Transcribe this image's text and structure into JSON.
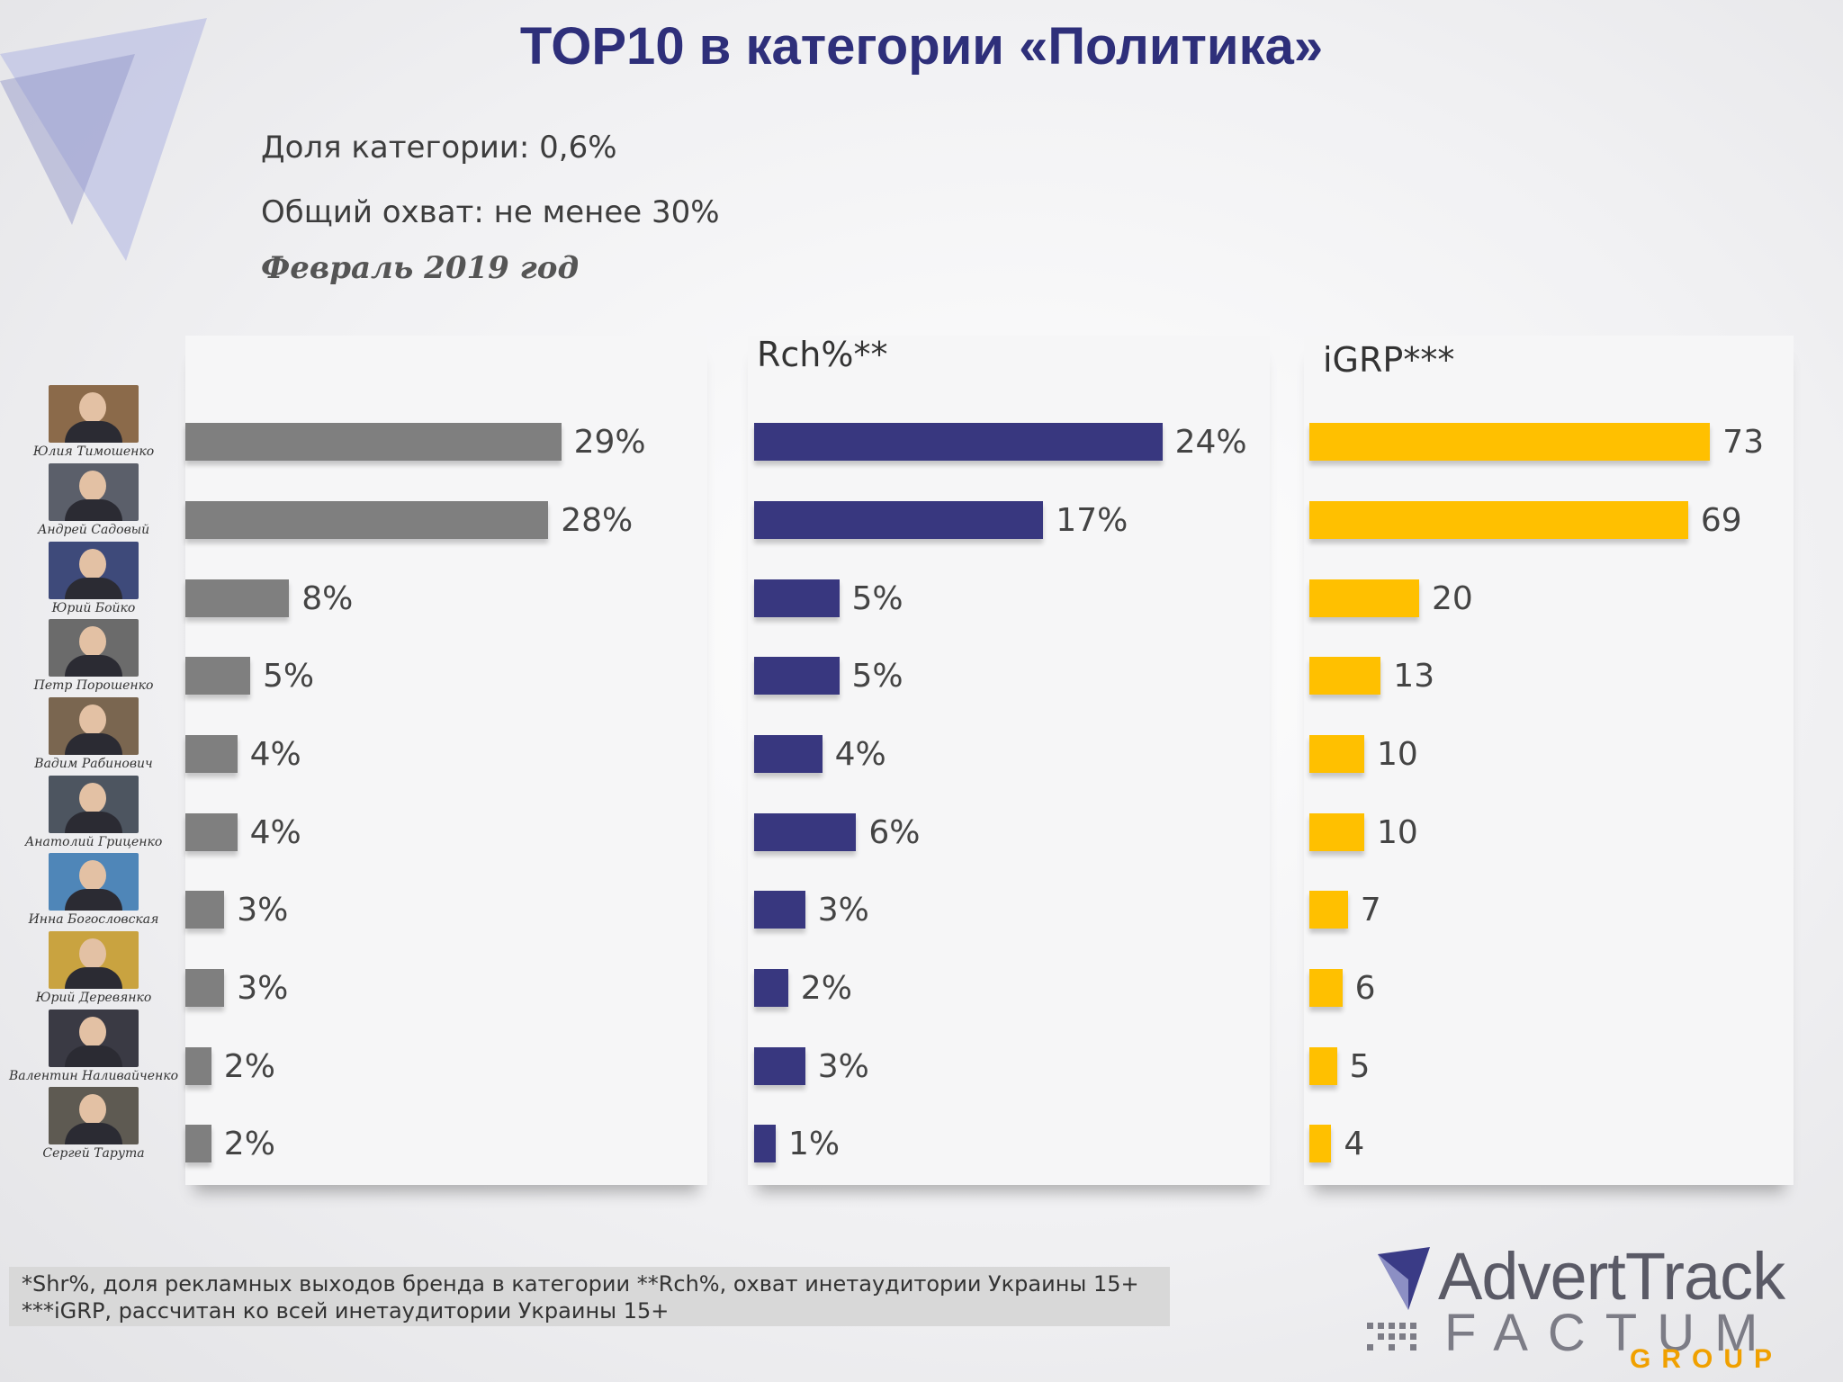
{
  "title": "TOP10 в категории «Политика»",
  "subtitle_share": "Доля категории: 0,6%",
  "subtitle_reach": "Общий охват: не менее 30%",
  "subtitle_period": "Февраль 2019 год",
  "people": [
    {
      "name": "Юлия Тимошенко"
    },
    {
      "name": "Андрей Садовый"
    },
    {
      "name": "Юрий Бойко"
    },
    {
      "name": "Петр Порошенко"
    },
    {
      "name": "Вадим Рабинович"
    },
    {
      "name": "Анатолий Гриценко"
    },
    {
      "name": "Инна Богословская"
    },
    {
      "name": "Юрий Деревянко"
    },
    {
      "name": "Валентин Наливайченко"
    },
    {
      "name": "Сергей Тарута"
    }
  ],
  "chart_data": [
    {
      "type": "bar",
      "title": "",
      "categories": [
        "Юлия Тимошенко",
        "Андрей Садовый",
        "Юрий Бойко",
        "Петр Порошенко",
        "Вадим Рабинович",
        "Анатолий Гриценко",
        "Инна Богословская",
        "Юрий Деревянко",
        "Валентин Наливайченко",
        "Сергей Тарута"
      ],
      "values": [
        29,
        28,
        8,
        5,
        4,
        4,
        3,
        3,
        2,
        2
      ],
      "labels": [
        "29%",
        "28%",
        "8%",
        "5%",
        "4%",
        "4%",
        "3%",
        "3%",
        "2%",
        "2%"
      ],
      "unit": "%",
      "color": "#7f7f7f"
    },
    {
      "type": "bar",
      "title": "Rch%**",
      "categories": [
        "Юлия Тимошенко",
        "Андрей Садовый",
        "Юрий Бойко",
        "Петр Порошенко",
        "Вадим Рабинович",
        "Анатолий Гриценко",
        "Инна Богословская",
        "Юрий Деревянко",
        "Валентин Наливайченко",
        "Сергей Тарута"
      ],
      "values": [
        24,
        17,
        5,
        5,
        4,
        6,
        3,
        2,
        3,
        1
      ],
      "labels": [
        "24%",
        "17%",
        "5%",
        "5%",
        "4%",
        "6%",
        "3%",
        "2%",
        "3%",
        "1%"
      ],
      "unit": "%",
      "color": "#38377f"
    },
    {
      "type": "bar",
      "title": "iGRP***",
      "categories": [
        "Юлия Тимошенко",
        "Андрей Садовый",
        "Юрий Бойко",
        "Петр Порошенко",
        "Вадим Рабинович",
        "Анатолий Гриценко",
        "Инна Богословская",
        "Юрий Деревянко",
        "Валентин Наливайченко",
        "Сергей Тарута"
      ],
      "values": [
        73,
        69,
        20,
        13,
        10,
        10,
        7,
        6,
        5,
        4
      ],
      "labels": [
        "73",
        "69",
        "20",
        "13",
        "10",
        "10",
        "7",
        "6",
        "5",
        "4"
      ],
      "color": "#ffc000"
    }
  ],
  "footnote_line1": "*Shr%, доля  рекламных выходов бренда в категории  **Rch%, охват инетаудитории Украины 15+",
  "footnote_line2": "***iGRP, рассчитан ко всей инетаудитории Украины  15+",
  "logo": {
    "line1": "AdvertTrack",
    "line2": "FACTUM",
    "line3": "GROUP"
  },
  "colors": {
    "title": "#2e2f7a",
    "shr_bar": "#7f7f7f",
    "rch_bar": "#38377f",
    "igrp_bar": "#ffc000"
  }
}
